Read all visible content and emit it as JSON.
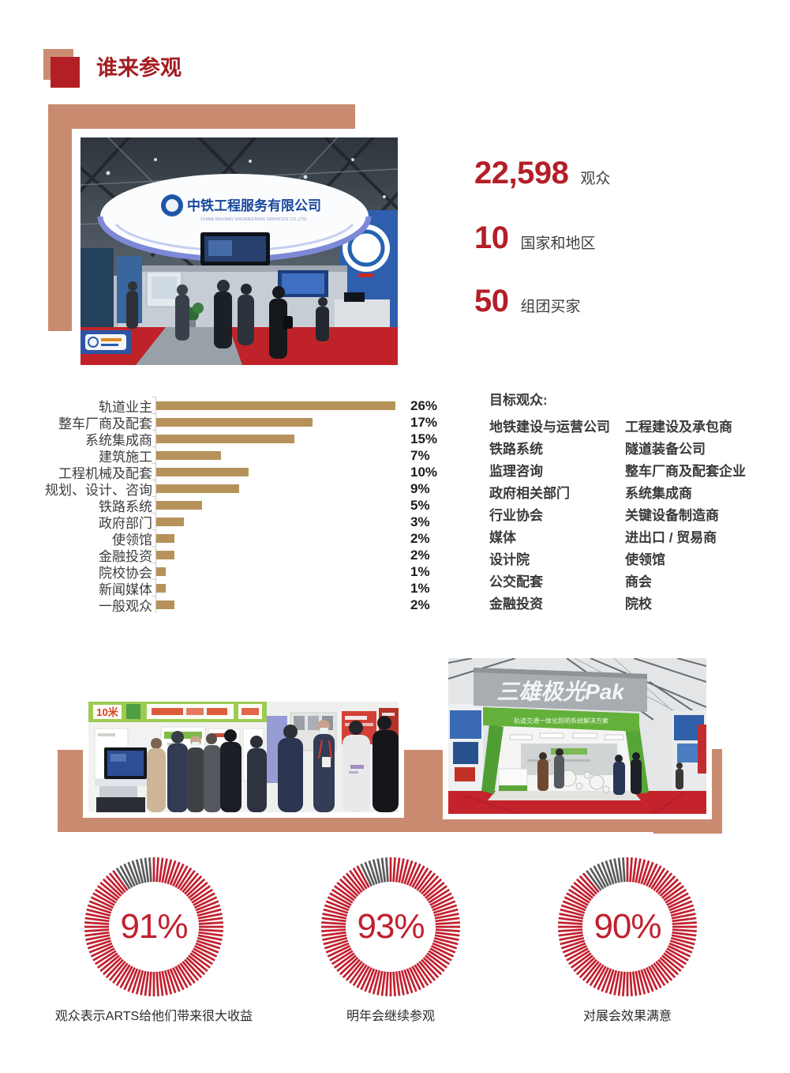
{
  "header": {
    "title": "谁来参观"
  },
  "stats": [
    {
      "value": "22,598",
      "label": "观众"
    },
    {
      "value": "10",
      "label": "国家和地区"
    },
    {
      "value": "50",
      "label": "组团买家"
    }
  ],
  "chart_data": [
    {
      "type": "bar",
      "orientation": "horizontal",
      "title": "",
      "xlabel": "",
      "ylabel": "",
      "unit": "%",
      "max": 26,
      "bar_color": "#b6925a",
      "categories": [
        "轨道业主",
        "整车厂商及配套",
        "系统集成商",
        "建筑施工",
        "工程机械及配套",
        "规划、设计、咨询",
        "铁路系统",
        "政府部门",
        "使领馆",
        "金融投资",
        "院校协会",
        "新闻媒体",
        "一般观众"
      ],
      "values": [
        26,
        17,
        15,
        7,
        10,
        9,
        5,
        3,
        2,
        2,
        1,
        1,
        2
      ],
      "value_labels": [
        "26%",
        "17%",
        "15%",
        "7%",
        "10%",
        "9%",
        "5%",
        "3%",
        "2%",
        "2%",
        "1%",
        "1%",
        "2%"
      ]
    },
    {
      "type": "donut",
      "value": 91,
      "center_label": "91%",
      "caption": "观众表示ARTS给他们带来很大收益",
      "color_main": "#c1202f",
      "color_rest": "#595a5c"
    },
    {
      "type": "donut",
      "value": 93,
      "center_label": "93%",
      "caption": "明年会继续参观",
      "color_main": "#c1202f",
      "color_rest": "#595a5c"
    },
    {
      "type": "donut",
      "value": 90,
      "center_label": "90%",
      "caption": "对展会效果满意",
      "color_main": "#c1202f",
      "color_rest": "#595a5c"
    }
  ],
  "target_audience": {
    "title": "目标观众:",
    "rows": [
      [
        "地铁建设与运营公司",
        "工程建设及承包商"
      ],
      [
        "铁路系统",
        "隧道装备公司"
      ],
      [
        "监理咨询",
        "整车厂商及配套企业"
      ],
      [
        "政府相关部门",
        "系统集成商"
      ],
      [
        "行业协会",
        "关键设备制造商"
      ],
      [
        "媒体",
        "进出口 / 贸易商"
      ],
      [
        "设计院",
        "使领馆"
      ],
      [
        "公交配套",
        "商会"
      ],
      [
        "金融投资",
        "院校"
      ]
    ]
  },
  "photos": {
    "booth_main": {
      "sign": "中铁工程服务有限公司",
      "sign_sub": "CHINA RAILWAY ENGINEERING SERVICES CO.,LTD."
    },
    "visitors_left": {
      "banner_left": "10米"
    },
    "pak": {
      "sign": "三雄极光Pak",
      "banner": "轨道交通一体化照明系统解决方案"
    }
  },
  "colors": {
    "accent_red": "#b41e28",
    "title_red": "#a31e22",
    "salmon": "#c98b70",
    "bar_tan": "#b6925a",
    "donut_red": "#c1202f",
    "donut_gray": "#595a5c"
  }
}
